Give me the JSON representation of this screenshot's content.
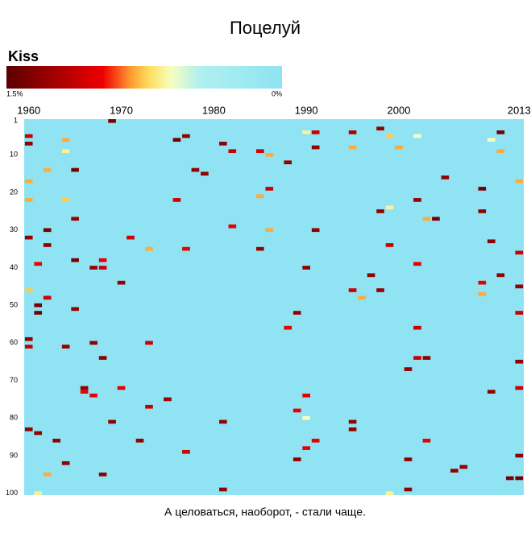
{
  "chart_data": {
    "type": "heatmap",
    "title": "Поцелуй",
    "caption": "А целоваться, наоборот, - стали чаще.",
    "colorbar": {
      "label": "Kiss",
      "zlim": [
        0,
        1.5
      ],
      "ticks": [
        {
          "value": 1.5,
          "label": "1.5%"
        },
        {
          "value": 0,
          "label": "0%"
        }
      ]
    },
    "xlim": [
      1960,
      2013
    ],
    "xticks": [
      1960,
      1970,
      1980,
      1990,
      2000,
      2013
    ],
    "ylim": [
      1,
      100
    ],
    "yticks": [
      1,
      10,
      20,
      30,
      40,
      50,
      60,
      70,
      80,
      90,
      100
    ],
    "cells": {
      "x": [
        1969,
        1960,
        1960,
        1964,
        1964,
        1976,
        1977,
        1981,
        1982,
        1985,
        1986,
        1988,
        1991,
        1990,
        1991,
        1995,
        1995,
        1998,
        1999,
        2000,
        2002,
        2011,
        2011,
        1965,
        1962,
        1978,
        1979,
        1960,
        1976,
        1985,
        1986,
        1960,
        1964,
        2002,
        2005,
        2009,
        1998,
        1999,
        2009,
        2004,
        2003,
        1965,
        1962,
        1960,
        1971,
        1982,
        1991,
        1986,
        2010,
        1999,
        1962,
        1973,
        1977,
        1985,
        2013,
        1965,
        1968,
        1961,
        1967,
        1968,
        1990,
        1997,
        2002,
        2011,
        2009,
        1970,
        1960,
        1995,
        1998,
        1996,
        2013,
        2009,
        1962,
        1961,
        1961,
        1965,
        1989,
        2013,
        1988,
        2002,
        1960,
        1960,
        1964,
        1973,
        1967,
        1968,
        2002,
        2003,
        2001,
        2013,
        1966,
        1966,
        1970,
        1975,
        1973,
        1967,
        1990,
        2010,
        2013,
        1989,
        1995,
        1995,
        1969,
        1981,
        1960,
        1961,
        1963,
        1972,
        1991,
        2003,
        1977,
        1990,
        2013,
        1964,
        1989,
        2001,
        2007,
        2006,
        2012,
        2013,
        1968,
        1981,
        2001,
        1962,
        1961,
        1999,
        2013,
        2010,
        1990
      ],
      "y": [
        1,
        5,
        7,
        6,
        9,
        6,
        5,
        7,
        9,
        9,
        10,
        12,
        4,
        4,
        8,
        4,
        8,
        3,
        5,
        8,
        5,
        4,
        9,
        14,
        14,
        14,
        15,
        17,
        22,
        21,
        19,
        22,
        22,
        22,
        16,
        19,
        25,
        24,
        25,
        27,
        27,
        27,
        30,
        32,
        32,
        29,
        30,
        30,
        33,
        34,
        34,
        35,
        35,
        35,
        36,
        38,
        38,
        39,
        40,
        40,
        40,
        42,
        39,
        42,
        44,
        44,
        46,
        46,
        46,
        48,
        45,
        47,
        48,
        50,
        52,
        51,
        52,
        52,
        56,
        56,
        59,
        61,
        61,
        60,
        60,
        64,
        64,
        64,
        67,
        65,
        72,
        73,
        72,
        75,
        77,
        74,
        74,
        73,
        72,
        78,
        81,
        83,
        81,
        81,
        83,
        84,
        86,
        86,
        86,
        86,
        89,
        88,
        90,
        92,
        91,
        91,
        93,
        94,
        96,
        96,
        95,
        99,
        99,
        95,
        100,
        100,
        17,
        6,
        80
      ],
      "values": [
        1.4,
        1.1,
        1.3,
        0.8,
        0.65,
        1.4,
        1.3,
        1.3,
        1.1,
        1.1,
        0.8,
        1.3,
        1.1,
        0.65,
        1.3,
        1.2,
        0.8,
        1.3,
        0.75,
        0.8,
        0.6,
        1.4,
        0.8,
        1.4,
        0.8,
        1.3,
        1.3,
        0.8,
        1.1,
        0.8,
        1.1,
        0.8,
        0.75,
        1.3,
        1.3,
        1.4,
        1.3,
        0.65,
        1.3,
        1.4,
        0.8,
        1.3,
        1.4,
        1.3,
        1.1,
        1.0,
        1.3,
        0.8,
        1.3,
        1.1,
        1.3,
        0.8,
        1.0,
        1.3,
        1.1,
        1.4,
        1.0,
        1.0,
        1.3,
        1.1,
        1.3,
        1.3,
        1.0,
        1.3,
        1.0,
        1.3,
        0.75,
        1.1,
        1.3,
        0.8,
        1.3,
        0.8,
        1.1,
        1.4,
        1.4,
        1.3,
        1.3,
        1.1,
        1.0,
        1.1,
        1.3,
        1.1,
        1.3,
        1.1,
        1.3,
        1.3,
        1.1,
        1.3,
        1.3,
        1.3,
        1.3,
        1.0,
        1.0,
        1.3,
        1.1,
        1.0,
        1.0,
        1.3,
        1.1,
        1.0,
        1.3,
        1.3,
        1.3,
        1.3,
        1.3,
        1.3,
        1.3,
        1.3,
        1.0,
        1.0,
        1.1,
        1.0,
        1.3,
        1.3,
        1.3,
        1.3,
        1.3,
        1.3,
        1.4,
        1.4,
        1.3,
        1.3,
        1.3,
        0.8,
        0.65,
        0.65,
        0.8,
        0.6,
        0.6
      ]
    }
  }
}
